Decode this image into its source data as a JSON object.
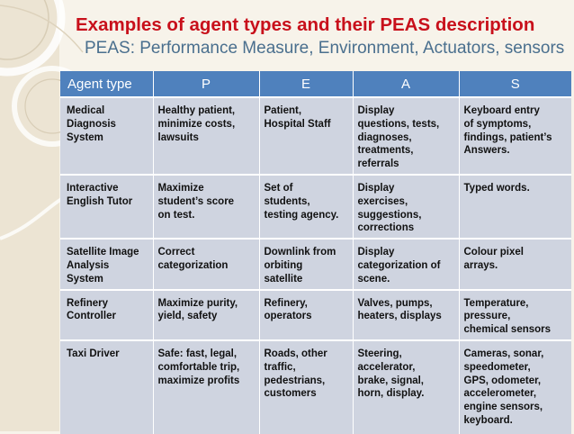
{
  "slide": {
    "title": "Examples of agent types and their PEAS description",
    "subtitle": "PEAS: Performance Measure, Environment, Actuators, sensors"
  },
  "table": {
    "headers": [
      "Agent  type",
      "P",
      "E",
      "A",
      "S"
    ],
    "rows": [
      [
        "Medical\nDiagnosis\nSystem",
        "Healthy patient,\nminimize costs,\nlawsuits",
        "Patient,\nHospital Staff",
        "Display\nquestions, tests,\ndiagnoses,\ntreatments,\nreferrals",
        "Keyboard  entry\nof symptoms,\nfindings, patient’s\nAnswers."
      ],
      [
        "Interactive\nEnglish Tutor",
        "Maximize\nstudent’s score\non test.",
        "Set of\nstudents,\ntesting agency.",
        "Display\nexercises,\nsuggestions,\ncorrections",
        "Typed words."
      ],
      [
        "Satellite Image\nAnalysis\nSystem",
        "Correct\ncategorization",
        "Downlink from\norbiting\nsatellite",
        "Display\ncategorization of\nscene.",
        "Colour pixel\narrays."
      ],
      [
        "Refinery\nController",
        "Maximize  purity,\nyield, safety",
        "Refinery,\noperators",
        "Valves, pumps,\nheaters, displays",
        "Temperature,\npressure,\nchemical sensors"
      ],
      [
        "Taxi Driver",
        "Safe: fast, legal,\ncomfortable trip,\nmaximize profits",
        "Roads, other\ntraffic,\npedestrians,\ncustomers",
        "Steering,\naccelerator,\nbrake, signal,\nhorn, display.",
        "Cameras, sonar,\nspeedometer,\nGPS, odometer,\naccelerometer,\nengine sensors,\nkeyboard."
      ]
    ]
  }
}
